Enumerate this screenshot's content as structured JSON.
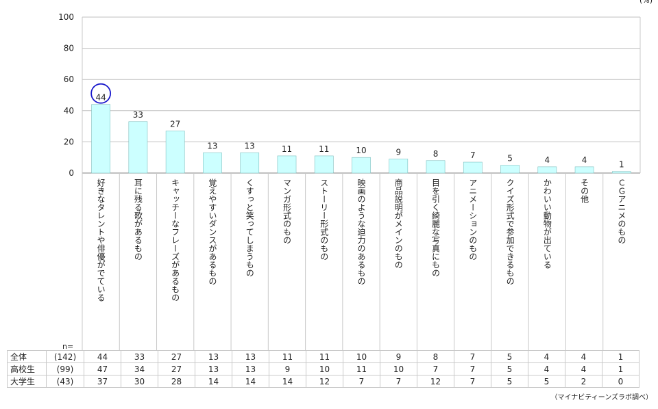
{
  "unit": "(%)",
  "n_label": "n=",
  "source": "（マイナビティーンズラボ調べ）",
  "colors": {
    "bar_fill": "#ccffff",
    "bar_stroke": "#7fbfbf",
    "highlight_circle": "#1a1acc",
    "grid": "#bfbfbf"
  },
  "chart_data": {
    "type": "bar",
    "ylim": [
      0,
      100
    ],
    "yticks": [
      0,
      20,
      40,
      60,
      80,
      100
    ],
    "grid": true,
    "categories": [
      "好きなタレントや俳優がでている",
      "耳に残る歌があるもの",
      "キャッチーなフレーズがあるもの",
      "覚えやすいダンスがあるもの",
      "くすっと笑ってしまうもの",
      "マンガ形式のもの",
      "ストーリー形式のもの",
      "映画のような迫力のあるもの",
      "商品説明がメインのもの",
      "目を引く綺麗な写真にもの",
      "アニメーションのもの",
      "クイズ形式で参加できるもの",
      "かわいい動物が出ている",
      "その他",
      "ＣＧアニメのもの"
    ],
    "values": [
      44,
      33,
      27,
      13,
      13,
      11,
      11,
      10,
      9,
      8,
      7,
      5,
      4,
      4,
      1
    ],
    "highlight_index": 0
  },
  "table": {
    "rows": [
      {
        "group": "全体",
        "n": "(142)",
        "values": [
          44,
          33,
          27,
          13,
          13,
          11,
          11,
          10,
          9,
          8,
          7,
          5,
          4,
          4,
          1
        ]
      },
      {
        "group": "高校生",
        "n": "(99)",
        "values": [
          47,
          34,
          27,
          13,
          13,
          9,
          10,
          11,
          10,
          7,
          7,
          5,
          4,
          4,
          1
        ]
      },
      {
        "group": "大学生",
        "n": "(43)",
        "values": [
          37,
          30,
          28,
          14,
          14,
          14,
          12,
          7,
          7,
          12,
          7,
          5,
          5,
          2,
          0
        ]
      }
    ]
  }
}
